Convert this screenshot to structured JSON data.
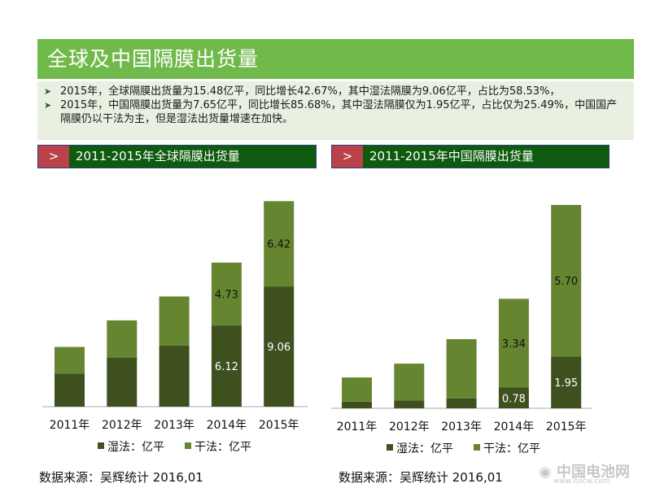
{
  "title": "全球及中国隔膜出货量",
  "bullets": [
    "2015年，全球隔膜出货量为15.48亿平，同比增长42.67%，其中湿法隔膜为9.06亿平，占比为58.53%，",
    "2015年，中国隔膜出货量为7.65亿平，同比增长85.68%，其中湿法隔膜仅为1.95亿平，占比仅为25.49%，中国国产隔膜仍以干法为主，但是湿法出货量增速在加快。"
  ],
  "bullet_icon": "arrow-right-icon",
  "subheader_marker": ">",
  "source_label": "数据来源：吴辉统计   2016,01",
  "watermark": {
    "name": "中国电池网",
    "url": "www.itdcw.com"
  },
  "colors": {
    "wet": "#3f501f",
    "dry": "#668530",
    "title_bg": "#70b94b",
    "subheader_bg": "#0e5a0e",
    "marker": "#b8414a"
  },
  "chart_data": [
    {
      "type": "bar",
      "stacked": true,
      "title": "2011-2015年全球隔膜出货量",
      "categories": [
        "2011年",
        "2012年",
        "2013年",
        "2014年",
        "2015年"
      ],
      "series": [
        {
          "name": "湿法：亿平",
          "values": [
            2.5,
            3.7,
            4.6,
            6.12,
            9.06
          ],
          "labels": [
            "",
            "",
            "",
            "6.12",
            "9.06"
          ]
        },
        {
          "name": "干法：亿平",
          "values": [
            2.0,
            2.8,
            3.7,
            4.73,
            6.42
          ],
          "labels": [
            "",
            "",
            "",
            "4.73",
            "6.42"
          ]
        }
      ],
      "ylim": [
        0,
        15.5
      ],
      "legend": "bottom",
      "grid": false
    },
    {
      "type": "bar",
      "stacked": true,
      "title": "2011-2015年中国隔膜出货量",
      "categories": [
        "2011年",
        "2012年",
        "2013年",
        "2014年",
        "2015年"
      ],
      "series": [
        {
          "name": "湿法：亿平",
          "values": [
            0.25,
            0.3,
            0.37,
            0.78,
            1.95
          ],
          "labels": [
            "",
            "",
            "",
            "0.78",
            "1.95"
          ]
        },
        {
          "name": "干法：亿平",
          "values": [
            0.91,
            1.38,
            2.23,
            3.34,
            5.7
          ],
          "labels": [
            "",
            "",
            "",
            "3.34",
            "5.70"
          ]
        }
      ],
      "ylim": [
        0,
        7.65
      ],
      "legend": "bottom",
      "grid": false
    }
  ]
}
